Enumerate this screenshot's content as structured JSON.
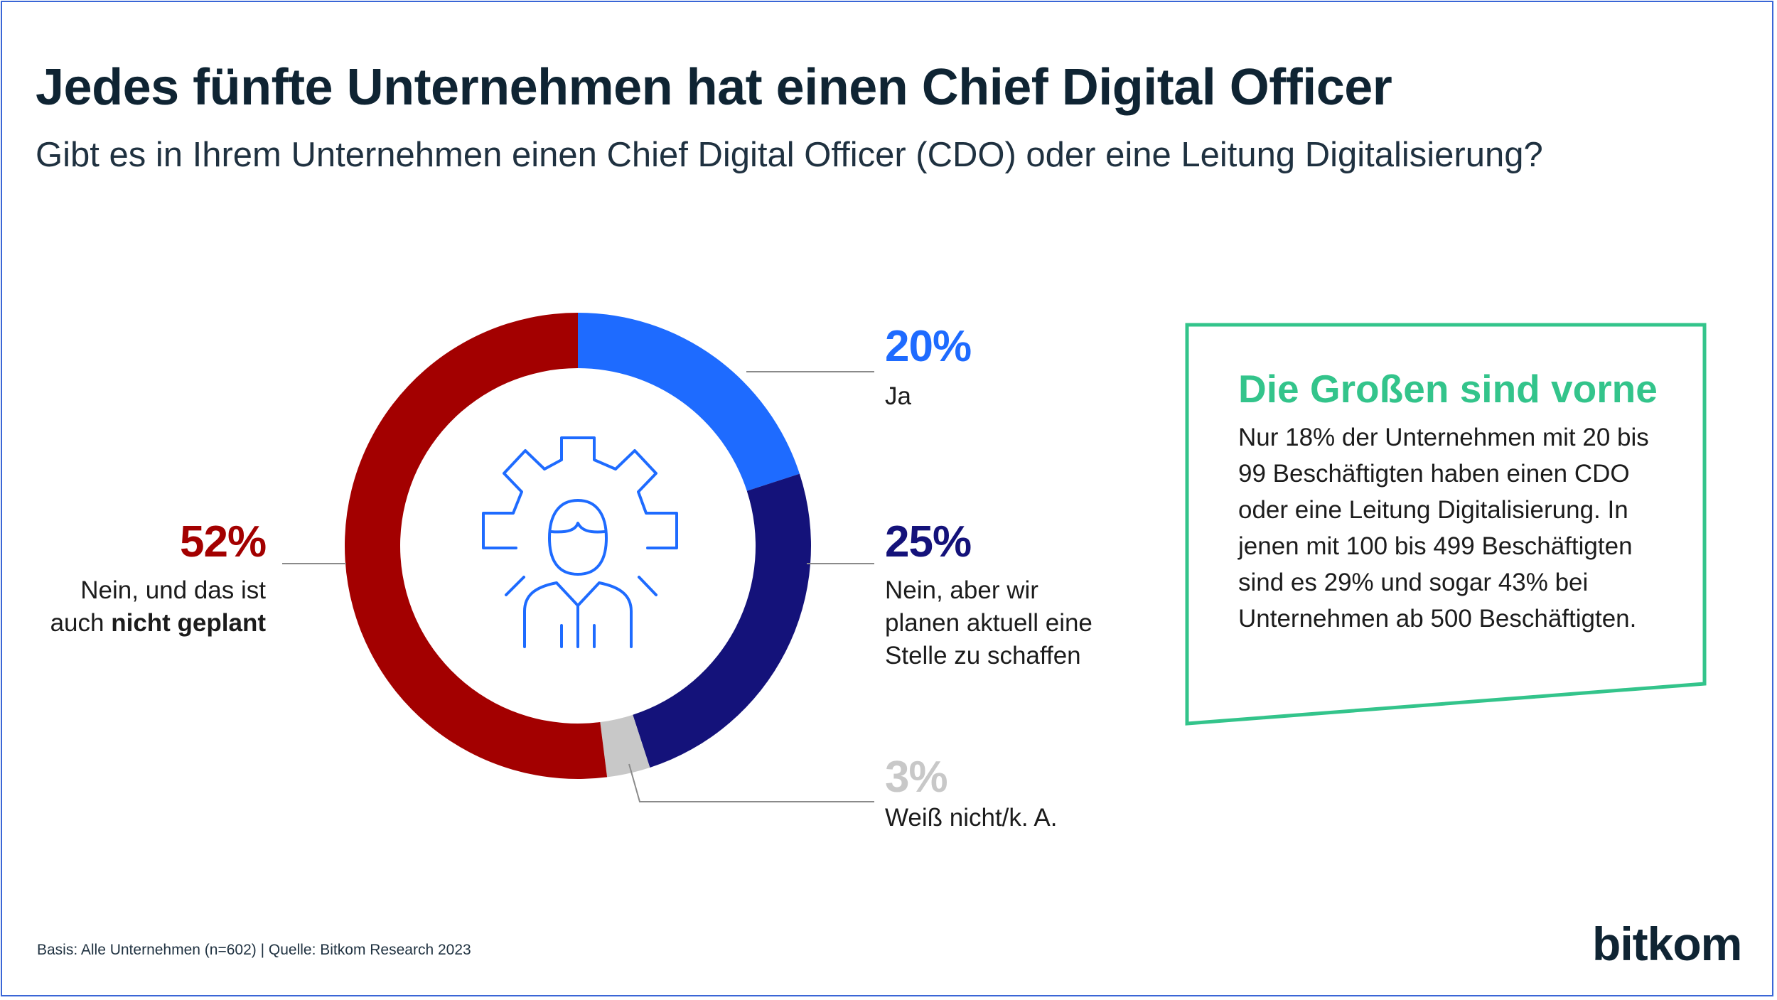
{
  "title": "Jedes fünfte Unternehmen hat einen Chief Digital Officer",
  "subtitle": "Gibt es in Ihrem Unternehmen einen Chief Digital Officer (CDO) oder eine Leitung Digitalisierung?",
  "chart_data": {
    "type": "pie",
    "title": "Jedes fünfte Unternehmen hat einen Chief Digital Officer",
    "subtitle": "Gibt es in Ihrem Unternehmen einen Chief Digital Officer (CDO) oder eine Leitung Digitalisierung?",
    "slices": [
      {
        "label": "Ja",
        "value": 20,
        "display": "20%",
        "color": "#1e6bff"
      },
      {
        "label": "Nein, aber wir planen aktuell eine Stelle zu schaffen",
        "value": 25,
        "display": "25%",
        "color": "#14127a"
      },
      {
        "label": "Weiß nicht/k. A.",
        "value": 3,
        "display": "3%",
        "color": "#c8c8c8"
      },
      {
        "label": "Nein, und das ist auch nicht geplant",
        "value": 52,
        "display": "52%",
        "color": "#a30000"
      }
    ]
  },
  "labels": {
    "ja": "Ja",
    "planen_1": "Nein, aber wir",
    "planen_2": "planen aktuell eine",
    "planen_3": "Stelle zu schaffen",
    "weiss": "Weiß nicht/k. A.",
    "nein_1": "Nein, und das ist",
    "nein_2a": "auch ",
    "nein_2b": "nicht geplant"
  },
  "center_icon": "person-gear-icon",
  "callout": {
    "title": "Die Großen sind vorne",
    "text": "Nur 18% der Unternehmen mit 20 bis 99 Beschäftigten haben einen CDO oder eine Leitung Digitalisierung. In jenen mit 100 bis 499 Beschäftigten sind es 29% und sogar 43% bei Unternehmen ab 500 Beschäftigten.",
    "border_color": "#33c48b"
  },
  "footer": "Basis: Alle Unternehmen (n=602) | Quelle: Bitkom Research 2023",
  "logo": "bitkom"
}
